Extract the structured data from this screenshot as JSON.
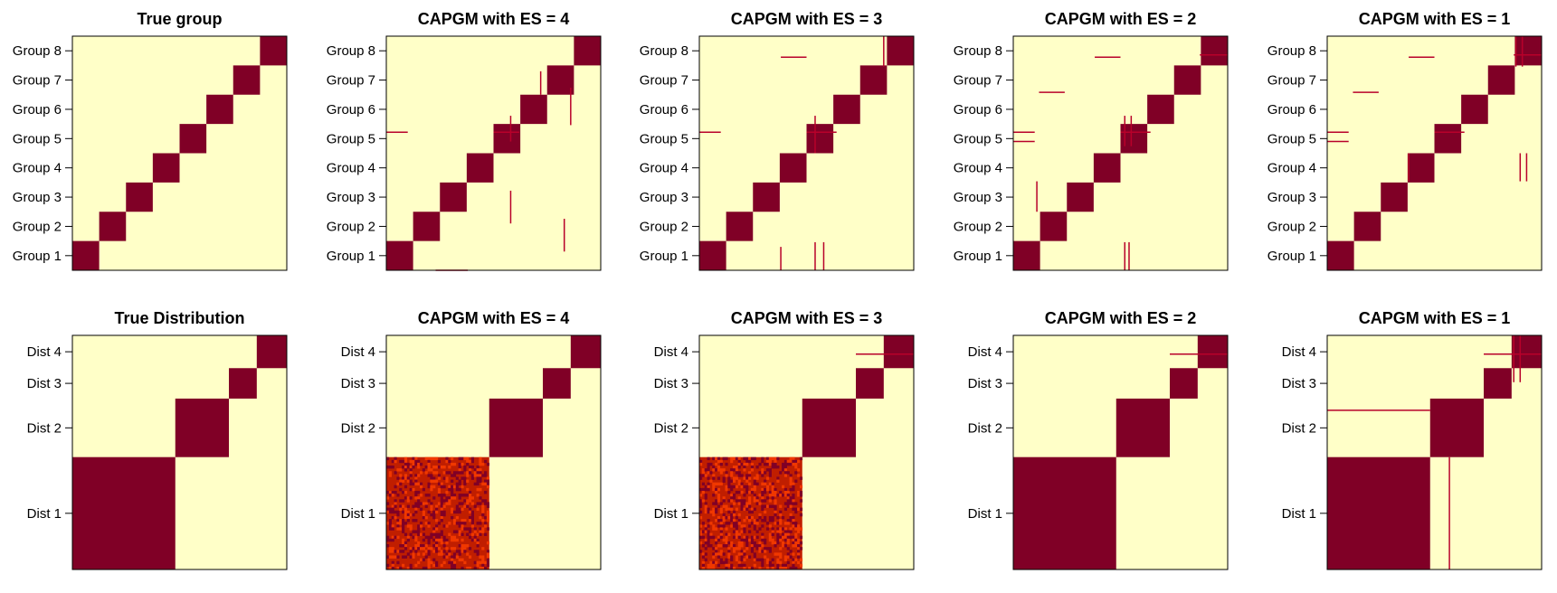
{
  "colors": {
    "background": "#FFFFC8",
    "block": "#800026",
    "line": "#B8002A",
    "noise_a": "#C01E00",
    "noise_b": "#F03800",
    "frame": "#000000"
  },
  "chart_data": [
    {
      "type": "heatmap",
      "title": "True group",
      "yticks": [
        "Group 1",
        "Group 2",
        "Group 3",
        "Group 4",
        "Group 5",
        "Group 6",
        "Group 7",
        "Group 8"
      ],
      "block_bounds": [
        0,
        0.125,
        0.25,
        0.375,
        0.5,
        0.625,
        0.75,
        0.875,
        1
      ],
      "noise": false,
      "lines": []
    },
    {
      "type": "heatmap",
      "title": "CAPGM with ES = 4",
      "yticks": [
        "Group 1",
        "Group 2",
        "Group 3",
        "Group 4",
        "Group 5",
        "Group 6",
        "Group 7",
        "Group 8"
      ],
      "block_bounds": [
        0,
        0.125,
        0.25,
        0.375,
        0.5,
        0.625,
        0.75,
        0.875,
        1
      ],
      "noise": false,
      "lines": [
        {
          "o": "h",
          "p": 0.59,
          "a": 0.0,
          "b": 0.1
        },
        {
          "o": "h",
          "p": 0.0,
          "a": 0.23,
          "b": 0.38
        },
        {
          "o": "v",
          "p": 0.58,
          "a": 0.2,
          "b": 0.34
        },
        {
          "o": "v",
          "p": 0.83,
          "a": 0.08,
          "b": 0.22
        },
        {
          "o": "v",
          "p": 0.58,
          "a": 0.55,
          "b": 0.66
        },
        {
          "o": "h",
          "p": 0.59,
          "a": 0.5,
          "b": 0.62
        },
        {
          "o": "v",
          "p": 0.72,
          "a": 0.75,
          "b": 0.85
        },
        {
          "o": "v",
          "p": 0.86,
          "a": 0.62,
          "b": 0.78
        }
      ]
    },
    {
      "type": "heatmap",
      "title": "CAPGM with ES = 3",
      "yticks": [
        "Group 1",
        "Group 2",
        "Group 3",
        "Group 4",
        "Group 5",
        "Group 6",
        "Group 7",
        "Group 8"
      ],
      "block_bounds": [
        0,
        0.125,
        0.25,
        0.375,
        0.5,
        0.625,
        0.75,
        0.875,
        1
      ],
      "noise": false,
      "lines": [
        {
          "o": "h",
          "p": 0.59,
          "a": 0.0,
          "b": 0.1
        },
        {
          "o": "h",
          "p": 0.91,
          "a": 0.38,
          "b": 0.5
        },
        {
          "o": "v",
          "p": 0.54,
          "a": 0.0,
          "b": 0.12
        },
        {
          "o": "v",
          "p": 0.58,
          "a": 0.0,
          "b": 0.12
        },
        {
          "o": "v",
          "p": 0.38,
          "a": 0.0,
          "b": 0.1
        },
        {
          "o": "h",
          "p": 0.59,
          "a": 0.5,
          "b": 0.64
        },
        {
          "o": "v",
          "p": 0.54,
          "a": 0.5,
          "b": 0.66
        },
        {
          "o": "v",
          "p": 0.86,
          "a": 0.87,
          "b": 1.0
        }
      ]
    },
    {
      "type": "heatmap",
      "title": "CAPGM with ES = 2",
      "yticks": [
        "Group 1",
        "Group 2",
        "Group 3",
        "Group 4",
        "Group 5",
        "Group 6",
        "Group 7",
        "Group 8"
      ],
      "block_bounds": [
        0,
        0.125,
        0.25,
        0.375,
        0.5,
        0.625,
        0.75,
        0.875,
        1
      ],
      "noise": false,
      "lines": [
        {
          "o": "h",
          "p": 0.59,
          "a": 0.0,
          "b": 0.1
        },
        {
          "o": "h",
          "p": 0.55,
          "a": 0.0,
          "b": 0.1
        },
        {
          "o": "h",
          "p": 0.91,
          "a": 0.38,
          "b": 0.5
        },
        {
          "o": "h",
          "p": 0.76,
          "a": 0.12,
          "b": 0.24
        },
        {
          "o": "v",
          "p": 0.11,
          "a": 0.25,
          "b": 0.38
        },
        {
          "o": "v",
          "p": 0.52,
          "a": 0.0,
          "b": 0.12
        },
        {
          "o": "v",
          "p": 0.54,
          "a": 0.0,
          "b": 0.12
        },
        {
          "o": "h",
          "p": 0.59,
          "a": 0.5,
          "b": 0.64
        },
        {
          "o": "v",
          "p": 0.52,
          "a": 0.53,
          "b": 0.66
        },
        {
          "o": "v",
          "p": 0.55,
          "a": 0.53,
          "b": 0.66
        },
        {
          "o": "h",
          "p": 0.92,
          "a": 0.87,
          "b": 1.0
        }
      ]
    },
    {
      "type": "heatmap",
      "title": "CAPGM with ES = 1",
      "yticks": [
        "Group 1",
        "Group 2",
        "Group 3",
        "Group 4",
        "Group 5",
        "Group 6",
        "Group 7",
        "Group 8"
      ],
      "block_bounds": [
        0,
        0.125,
        0.25,
        0.375,
        0.5,
        0.625,
        0.75,
        0.875,
        1
      ],
      "noise": false,
      "lines": [
        {
          "o": "h",
          "p": 0.59,
          "a": 0.0,
          "b": 0.1
        },
        {
          "o": "h",
          "p": 0.55,
          "a": 0.0,
          "b": 0.1
        },
        {
          "o": "h",
          "p": 0.91,
          "a": 0.38,
          "b": 0.5
        },
        {
          "o": "h",
          "p": 0.76,
          "a": 0.12,
          "b": 0.24
        },
        {
          "o": "h",
          "p": 0.59,
          "a": 0.5,
          "b": 0.64
        },
        {
          "o": "v",
          "p": 0.38,
          "a": 0.38,
          "b": 0.5
        },
        {
          "o": "v",
          "p": 0.9,
          "a": 0.38,
          "b": 0.5
        },
        {
          "o": "v",
          "p": 0.93,
          "a": 0.38,
          "b": 0.5
        },
        {
          "o": "v",
          "p": 0.88,
          "a": 0.87,
          "b": 1.0
        },
        {
          "o": "v",
          "p": 0.91,
          "a": 0.87,
          "b": 1.0
        },
        {
          "o": "h",
          "p": 0.92,
          "a": 0.87,
          "b": 1.0
        }
      ]
    },
    {
      "type": "heatmap",
      "title": "True Distribution",
      "yticks": [
        "Dist 1",
        "Dist 2",
        "Dist 3",
        "Dist 4"
      ],
      "block_bounds": [
        0,
        0.48,
        0.73,
        0.86,
        1
      ],
      "noise": false,
      "lines": []
    },
    {
      "type": "heatmap",
      "title": "CAPGM with ES = 4",
      "yticks": [
        "Dist 1",
        "Dist 2",
        "Dist 3",
        "Dist 4"
      ],
      "block_bounds": [
        0,
        0.48,
        0.73,
        0.86,
        1
      ],
      "noise": true,
      "lines": []
    },
    {
      "type": "heatmap",
      "title": "CAPGM with ES = 3",
      "yticks": [
        "Dist 1",
        "Dist 2",
        "Dist 3",
        "Dist 4"
      ],
      "block_bounds": [
        0,
        0.48,
        0.73,
        0.86,
        1
      ],
      "noise": true,
      "lines": [
        {
          "o": "h",
          "p": 0.92,
          "a": 0.73,
          "b": 1.0
        }
      ]
    },
    {
      "type": "heatmap",
      "title": "CAPGM with ES = 2",
      "yticks": [
        "Dist 1",
        "Dist 2",
        "Dist 3",
        "Dist 4"
      ],
      "block_bounds": [
        0,
        0.48,
        0.73,
        0.86,
        1
      ],
      "noise": false,
      "lines": [
        {
          "o": "h",
          "p": 0.92,
          "a": 0.73,
          "b": 1.0
        }
      ]
    },
    {
      "type": "heatmap",
      "title": "CAPGM with ES = 1",
      "yticks": [
        "Dist 1",
        "Dist 2",
        "Dist 3",
        "Dist 4"
      ],
      "block_bounds": [
        0,
        0.48,
        0.73,
        0.86,
        1
      ],
      "noise": false,
      "lines": [
        {
          "o": "h",
          "p": 0.92,
          "a": 0.73,
          "b": 1.0
        },
        {
          "o": "v",
          "p": 0.87,
          "a": 0.8,
          "b": 1.0
        },
        {
          "o": "v",
          "p": 0.9,
          "a": 0.8,
          "b": 1.0
        },
        {
          "o": "h",
          "p": 0.68,
          "a": 0.0,
          "b": 0.48
        },
        {
          "o": "v",
          "p": 0.57,
          "a": 0.0,
          "b": 0.48
        }
      ]
    }
  ]
}
